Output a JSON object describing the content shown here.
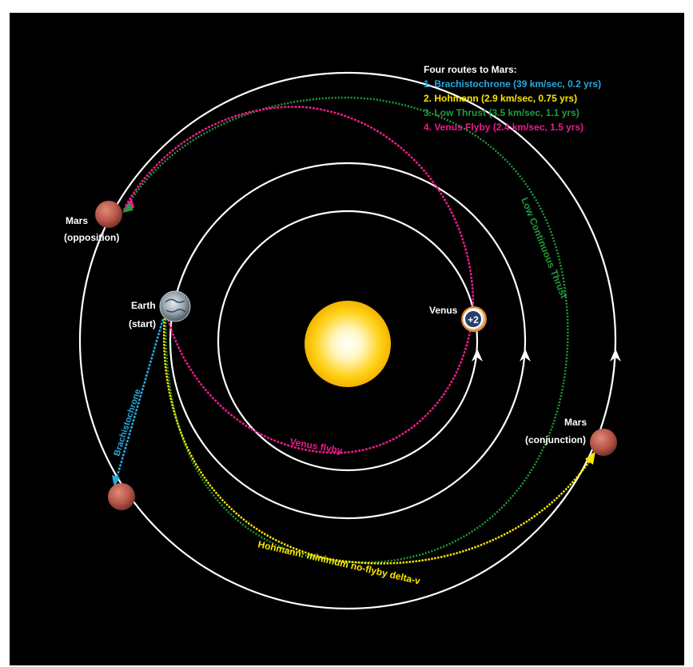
{
  "legend": {
    "title": "Four routes to Mars:",
    "items": [
      {
        "text": "1. Brachistochrone (39 km/sec, 0.2 yrs)",
        "color": "#29a9e0"
      },
      {
        "text": "2. Hohmann (2.9 km/sec, 0.75 yrs)",
        "color": "#ffe600"
      },
      {
        "text": "3. Low Thrust (3.5 km/sec, 1.1 yrs)",
        "color": "#1f9e3a"
      },
      {
        "text": "4. Venus Flyby (2.4 km/sec, 1.5 yrs)",
        "color": "#ec1c8c"
      }
    ]
  },
  "labels": {
    "mars_opposition_name": "Mars",
    "mars_opposition_note": "(opposition)",
    "earth_name": "Earth",
    "earth_note": "(start)",
    "venus_name": "Venus",
    "venus_badge": "+2",
    "mars_conjunction_name": "Mars",
    "mars_conjunction_note": "(conjunction)",
    "brachistochrone_route": "Brachistochrone",
    "low_thrust_route": "Low Continuous Thrust",
    "venus_flyby_route": "Venus flyby",
    "hohmann_route": "Hohmann: minimum no-flyby delta-v"
  },
  "colors": {
    "background": "#000000",
    "orbit": "#ffffff",
    "brachistochrone": "#29a9e0",
    "hohmann": "#ffe600",
    "low_thrust": "#1f9e3a",
    "venus_flyby": "#ec1c8c",
    "sun": "#ffd21a",
    "mars": "#c0574a"
  }
}
